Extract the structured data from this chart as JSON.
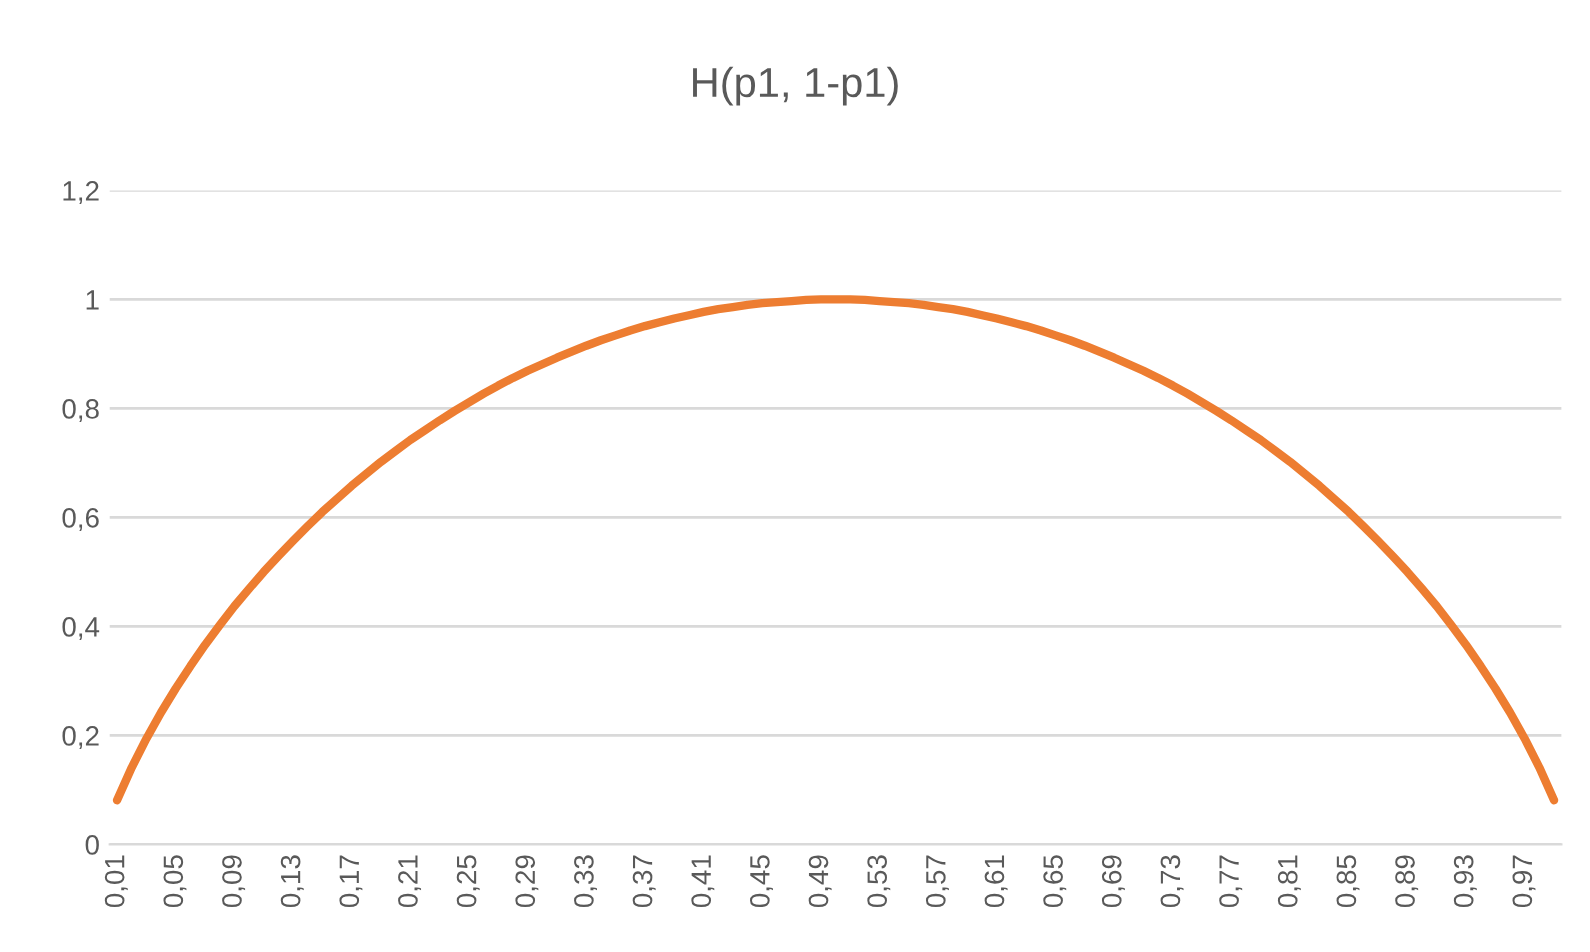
{
  "chart_data": {
    "type": "line",
    "title": "H(p1, 1-p1)",
    "categories": [
      "0,01",
      null,
      null,
      null,
      "0,05",
      null,
      null,
      null,
      "0,09",
      null,
      null,
      null,
      "0,13",
      null,
      null,
      null,
      "0,17",
      null,
      null,
      null,
      "0,21",
      null,
      null,
      null,
      "0,25",
      null,
      null,
      null,
      "0,29",
      null,
      null,
      null,
      "0,33",
      null,
      null,
      null,
      "0,37",
      null,
      null,
      null,
      "0,41",
      null,
      null,
      null,
      "0,45",
      null,
      null,
      null,
      "0,49",
      null,
      null,
      null,
      "0,53",
      null,
      null,
      null,
      "0,57",
      null,
      null,
      null,
      "0,61",
      null,
      null,
      null,
      "0,65",
      null,
      null,
      null,
      "0,69",
      null,
      null,
      null,
      "0,73",
      null,
      null,
      null,
      "0,77",
      null,
      null,
      null,
      "0,81",
      null,
      null,
      null,
      "0,85",
      null,
      null,
      null,
      "0,89",
      null,
      null,
      null,
      "0,93",
      null,
      null,
      null,
      "0,97",
      null,
      null
    ],
    "series": [
      {
        "color": "#ed7d31",
        "values": [
          0.081,
          0.141,
          0.194,
          0.242,
          0.286,
          0.327,
          0.366,
          0.402,
          0.437,
          0.469,
          0.5,
          0.529,
          0.557,
          0.584,
          0.61,
          0.634,
          0.658,
          0.68,
          0.702,
          0.722,
          0.742,
          0.76,
          0.778,
          0.795,
          0.811,
          0.827,
          0.842,
          0.856,
          0.869,
          0.881,
          0.893,
          0.904,
          0.915,
          0.925,
          0.934,
          0.943,
          0.951,
          0.958,
          0.965,
          0.971,
          0.977,
          0.982,
          0.986,
          0.99,
          0.993,
          0.995,
          0.997,
          0.999,
          1.0,
          1.0,
          1.0,
          0.999,
          0.997,
          0.995,
          0.993,
          0.99,
          0.986,
          0.982,
          0.977,
          0.971,
          0.965,
          0.958,
          0.951,
          0.943,
          0.934,
          0.925,
          0.915,
          0.904,
          0.893,
          0.881,
          0.869,
          0.856,
          0.842,
          0.827,
          0.811,
          0.795,
          0.778,
          0.76,
          0.742,
          0.722,
          0.702,
          0.68,
          0.658,
          0.634,
          0.61,
          0.584,
          0.557,
          0.529,
          0.5,
          0.469,
          0.437,
          0.402,
          0.366,
          0.327,
          0.286,
          0.242,
          0.194,
          0.141,
          0.081
        ]
      }
    ],
    "ylim": [
      0,
      1.2
    ],
    "yticks": [
      0,
      {
        "value": 0.2,
        "label": "0,2"
      },
      {
        "value": 0.4,
        "label": "0,4"
      },
      {
        "value": 0.6,
        "label": "0,6"
      },
      {
        "value": 0.8,
        "label": "0,8"
      },
      1,
      {
        "value": 1.2,
        "label": "1,2"
      }
    ],
    "grid": "y",
    "marker": "none",
    "line_style": "solid"
  }
}
